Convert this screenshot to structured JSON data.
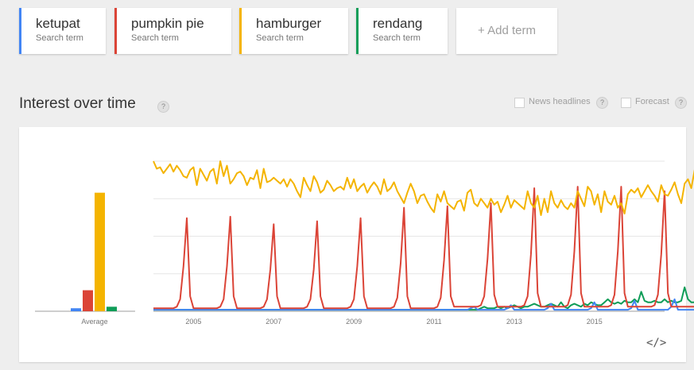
{
  "terms": [
    {
      "name": "ketupat",
      "sub": "Search term",
      "color": "#4285f4"
    },
    {
      "name": "pumpkin pie",
      "sub": "Search term",
      "color": "#db4437"
    },
    {
      "name": "hamburger",
      "sub": "Search term",
      "color": "#f4b400"
    },
    {
      "name": "rendang",
      "sub": "Search term",
      "color": "#0f9d58"
    }
  ],
  "add_term_label": "+ Add term",
  "section_title": "Interest over time",
  "help_glyph": "?",
  "options": {
    "news_headlines": "News headlines",
    "forecast": "Forecast"
  },
  "embed_label": "</>",
  "chart_data": {
    "type": "line",
    "x_ticks": [
      "2005",
      "2007",
      "2009",
      "2011",
      "2013",
      "2015"
    ],
    "average_label": "Average",
    "averages": [
      {
        "name": "ketupat",
        "value": 2,
        "color": "#4285f4"
      },
      {
        "name": "pumpkin pie",
        "value": 14,
        "color": "#db4437"
      },
      {
        "name": "hamburger",
        "value": 79,
        "color": "#f4b400"
      },
      {
        "name": "rendang",
        "value": 3,
        "color": "#0f9d58"
      }
    ],
    "ylim": [
      0,
      100
    ],
    "grid": true,
    "series": [
      {
        "name": "ketupat",
        "color": "#4285f4",
        "start_year": 2004,
        "step_months": 1,
        "values": [
          1,
          1,
          1,
          1,
          1,
          1,
          1,
          1,
          1,
          1,
          1,
          1,
          1,
          1,
          1,
          1,
          1,
          1,
          1,
          1,
          1,
          1,
          1,
          1,
          1,
          1,
          1,
          1,
          1,
          1,
          1,
          1,
          1,
          1,
          1,
          1,
          1,
          1,
          1,
          1,
          1,
          1,
          1,
          1,
          1,
          1,
          1,
          1,
          1,
          1,
          1,
          1,
          1,
          1,
          1,
          1,
          1,
          1,
          1,
          1,
          1,
          1,
          1,
          1,
          1,
          1,
          1,
          1,
          1,
          1,
          1,
          1,
          1,
          1,
          1,
          1,
          1,
          1,
          1,
          1,
          1,
          1,
          1,
          1,
          1,
          1,
          1,
          1,
          1,
          1,
          1,
          1,
          1,
          1,
          1,
          2,
          3,
          1,
          1,
          1,
          1,
          1,
          1,
          1,
          1,
          1,
          2,
          4,
          1,
          1,
          1,
          1,
          1,
          1,
          1,
          1,
          1,
          1,
          2,
          5,
          1,
          1,
          1,
          1,
          1,
          1,
          1,
          1,
          1,
          1,
          1,
          2,
          6,
          1,
          1,
          1,
          1,
          1,
          1,
          1,
          1,
          1,
          1,
          2,
          7,
          1,
          1,
          1,
          1,
          1,
          1,
          1,
          1,
          1,
          1,
          3,
          8,
          1,
          1,
          1,
          1,
          1,
          1,
          1,
          1,
          1,
          3,
          12,
          2,
          1,
          1,
          1,
          1,
          1,
          1,
          1,
          2,
          14,
          2,
          2
        ]
      },
      {
        "name": "pumpkin pie",
        "color": "#db4437",
        "start_year": 2004,
        "step_months": 1,
        "values": [
          2,
          2,
          2,
          2,
          2,
          2,
          2,
          3,
          8,
          30,
          62,
          10,
          2,
          2,
          2,
          2,
          2,
          2,
          2,
          2,
          3,
          8,
          30,
          63,
          10,
          2,
          2,
          2,
          2,
          2,
          2,
          2,
          2,
          3,
          8,
          28,
          58,
          10,
          2,
          2,
          2,
          2,
          2,
          2,
          2,
          2,
          3,
          8,
          28,
          60,
          10,
          2,
          2,
          2,
          2,
          2,
          2,
          2,
          2,
          3,
          8,
          30,
          62,
          10,
          2,
          2,
          2,
          2,
          2,
          2,
          2,
          2,
          3,
          9,
          32,
          69,
          10,
          2,
          2,
          2,
          2,
          2,
          2,
          2,
          2,
          3,
          9,
          34,
          70,
          10,
          3,
          3,
          3,
          3,
          3,
          3,
          3,
          3,
          4,
          10,
          35,
          72,
          11,
          3,
          3,
          3,
          3,
          3,
          3,
          3,
          3,
          4,
          10,
          38,
          82,
          12,
          3,
          3,
          3,
          3,
          3,
          3,
          3,
          3,
          4,
          11,
          40,
          83,
          12,
          3,
          3,
          3,
          3,
          3,
          3,
          3,
          3,
          4,
          11,
          40,
          83,
          12,
          3,
          3,
          3,
          3,
          3,
          3,
          3,
          3,
          4,
          11,
          38,
          80,
          12,
          3,
          3,
          3,
          3,
          3,
          3,
          3,
          3,
          4,
          11,
          36,
          78,
          12,
          3,
          3,
          3
        ]
      },
      {
        "name": "hamburger",
        "color": "#f4b400",
        "start_year": 2004,
        "step_months": 1,
        "values": [
          100,
          95,
          96,
          92,
          95,
          98,
          93,
          97,
          94,
          90,
          89,
          94,
          96,
          84,
          95,
          91,
          87,
          93,
          95,
          85,
          100,
          90,
          97,
          85,
          88,
          92,
          93,
          90,
          84,
          89,
          88,
          94,
          82,
          95,
          86,
          87,
          89,
          87,
          85,
          88,
          83,
          88,
          85,
          80,
          76,
          89,
          84,
          80,
          90,
          86,
          79,
          81,
          87,
          84,
          80,
          82,
          83,
          81,
          89,
          82,
          88,
          80,
          83,
          85,
          79,
          83,
          86,
          83,
          78,
          88,
          80,
          82,
          86,
          80,
          76,
          72,
          79,
          85,
          80,
          72,
          77,
          78,
          73,
          69,
          66,
          78,
          73,
          80,
          72,
          70,
          68,
          73,
          74,
          67,
          79,
          81,
          72,
          70,
          75,
          72,
          69,
          75,
          71,
          73,
          66,
          71,
          77,
          69,
          74,
          72,
          70,
          68,
          80,
          72,
          69,
          77,
          64,
          75,
          66,
          80,
          72,
          69,
          74,
          70,
          68,
          72,
          69,
          80,
          75,
          70,
          83,
          80,
          71,
          78,
          66,
          80,
          73,
          71,
          77,
          69,
          72,
          65,
          78,
          81,
          79,
          82,
          76,
          80,
          84,
          80,
          77,
          73,
          84,
          78,
          77,
          81,
          86,
          78,
          72,
          85,
          88,
          82,
          94,
          89
        ]
      },
      {
        "name": "rendang",
        "color": "#0f9d58",
        "start_year": 2004,
        "step_months": 1,
        "values": [
          1,
          1,
          1,
          1,
          1,
          1,
          1,
          1,
          1,
          1,
          1,
          1,
          1,
          1,
          1,
          1,
          1,
          1,
          1,
          1,
          1,
          1,
          1,
          1,
          1,
          1,
          1,
          1,
          1,
          1,
          1,
          1,
          1,
          1,
          1,
          1,
          1,
          1,
          1,
          1,
          1,
          1,
          1,
          1,
          1,
          1,
          1,
          1,
          1,
          1,
          1,
          1,
          1,
          1,
          1,
          1,
          1,
          1,
          1,
          1,
          1,
          1,
          1,
          1,
          1,
          1,
          1,
          1,
          1,
          1,
          1,
          1,
          1,
          1,
          1,
          1,
          1,
          1,
          1,
          1,
          1,
          1,
          1,
          1,
          1,
          1,
          1,
          1,
          1,
          1,
          1,
          1,
          1,
          1,
          1,
          1,
          1,
          1,
          2,
          3,
          2,
          2,
          2,
          3,
          2,
          3,
          2,
          3,
          4,
          3,
          2,
          3,
          3,
          4,
          5,
          4,
          3,
          3,
          4,
          5,
          4,
          3,
          6,
          3,
          2,
          4,
          5,
          4,
          3,
          5,
          4,
          6,
          5,
          4,
          4,
          6,
          8,
          6,
          5,
          6,
          5,
          7,
          6,
          6,
          8,
          6,
          13,
          7,
          6,
          6,
          7,
          6,
          6,
          8,
          6,
          7,
          6,
          6,
          7,
          16,
          8,
          6,
          6,
          12,
          7,
          6,
          6,
          6,
          6
        ]
      }
    ]
  }
}
